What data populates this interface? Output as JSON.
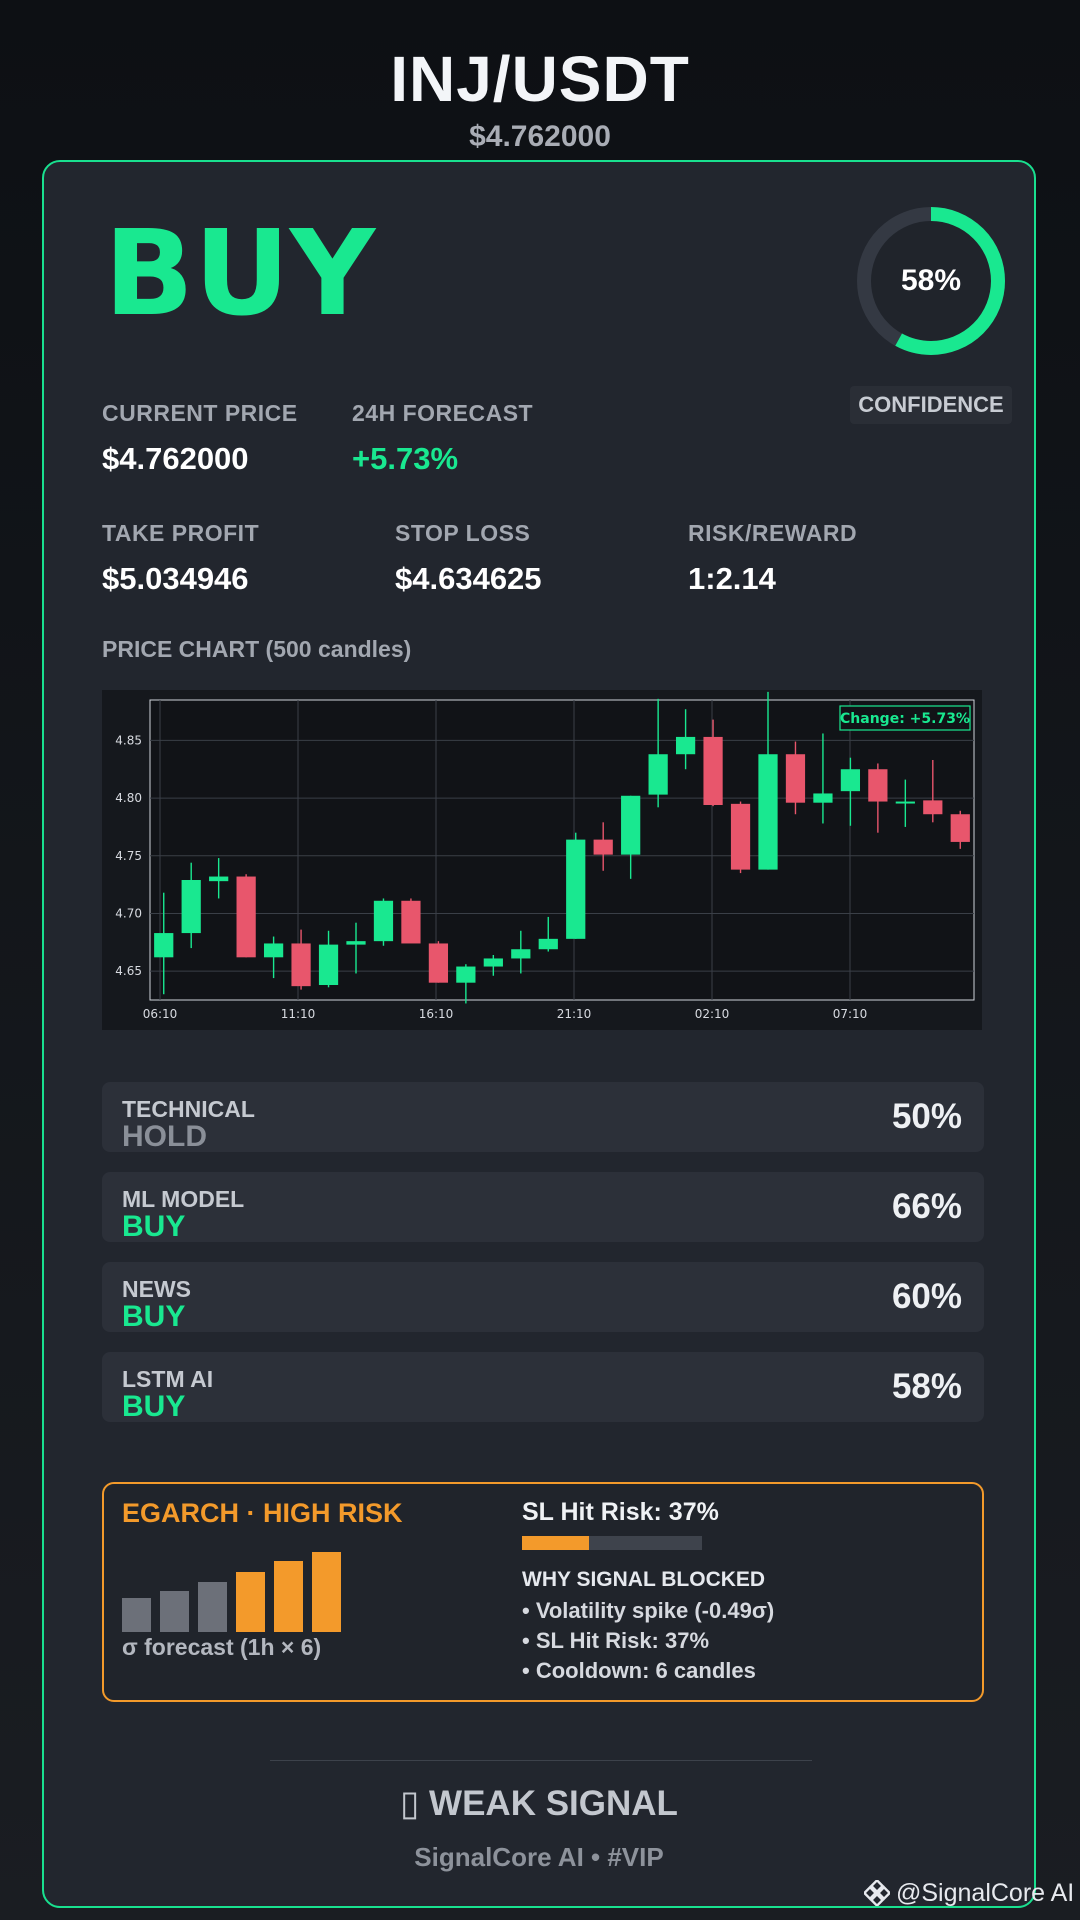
{
  "header": {
    "pair": "INJ/USDT",
    "price": "$4.762000"
  },
  "signal": {
    "action": "BUY",
    "confidence_pct": 58,
    "confidence_text": "58%",
    "confidence_label": "CONFIDENCE"
  },
  "stats": {
    "current_price": {
      "label": "CURRENT PRICE",
      "value": "$4.762000"
    },
    "forecast": {
      "label": "24H FORECAST",
      "value": "+5.73%"
    },
    "take_profit": {
      "label": "TAKE PROFIT",
      "value": "$5.034946"
    },
    "stop_loss": {
      "label": "STOP LOSS",
      "value": "$4.634625"
    },
    "risk_reward": {
      "label": "RISK/REWARD",
      "value": "1:2.14"
    }
  },
  "chart_section_label": "PRICE CHART (500 candles)",
  "chart_data": {
    "type": "candlestick",
    "annotation": "Change: +5.73%",
    "x_ticks": [
      "06:10",
      "11:10",
      "16:10",
      "21:10",
      "02:10",
      "07:10"
    ],
    "y_ticks": [
      "4.65",
      "4.70",
      "4.75",
      "4.80",
      "4.85"
    ],
    "ylim": [
      4.625,
      4.885
    ],
    "grid": true,
    "colors": {
      "up": "#19e890",
      "down": "#e8566c"
    },
    "candles": [
      {
        "o": 4.662,
        "h": 4.718,
        "l": 4.63,
        "c": 4.683
      },
      {
        "o": 4.683,
        "h": 4.744,
        "l": 4.67,
        "c": 4.729
      },
      {
        "o": 4.728,
        "h": 4.748,
        "l": 4.713,
        "c": 4.732
      },
      {
        "o": 4.732,
        "h": 4.734,
        "l": 4.662,
        "c": 4.662
      },
      {
        "o": 4.662,
        "h": 4.68,
        "l": 4.644,
        "c": 4.674
      },
      {
        "o": 4.674,
        "h": 4.686,
        "l": 4.634,
        "c": 4.637
      },
      {
        "o": 4.638,
        "h": 4.685,
        "l": 4.636,
        "c": 4.673
      },
      {
        "o": 4.673,
        "h": 4.692,
        "l": 4.648,
        "c": 4.676
      },
      {
        "o": 4.676,
        "h": 4.713,
        "l": 4.672,
        "c": 4.711
      },
      {
        "o": 4.711,
        "h": 4.713,
        "l": 4.675,
        "c": 4.674
      },
      {
        "o": 4.674,
        "h": 4.676,
        "l": 4.64,
        "c": 4.64
      },
      {
        "o": 4.64,
        "h": 4.656,
        "l": 4.622,
        "c": 4.654
      },
      {
        "o": 4.654,
        "h": 4.664,
        "l": 4.646,
        "c": 4.661
      },
      {
        "o": 4.661,
        "h": 4.685,
        "l": 4.648,
        "c": 4.669
      },
      {
        "o": 4.669,
        "h": 4.697,
        "l": 4.667,
        "c": 4.678
      },
      {
        "o": 4.678,
        "h": 4.77,
        "l": 4.678,
        "c": 4.764
      },
      {
        "o": 4.764,
        "h": 4.779,
        "l": 4.737,
        "c": 4.751
      },
      {
        "o": 4.751,
        "h": 4.802,
        "l": 4.73,
        "c": 4.802
      },
      {
        "o": 4.803,
        "h": 4.886,
        "l": 4.792,
        "c": 4.838
      },
      {
        "o": 4.838,
        "h": 4.877,
        "l": 4.825,
        "c": 4.853
      },
      {
        "o": 4.853,
        "h": 4.868,
        "l": 4.793,
        "c": 4.794
      },
      {
        "o": 4.795,
        "h": 4.797,
        "l": 4.735,
        "c": 4.738
      },
      {
        "o": 4.738,
        "h": 4.892,
        "l": 4.738,
        "c": 4.838
      },
      {
        "o": 4.838,
        "h": 4.849,
        "l": 4.786,
        "c": 4.796
      },
      {
        "o": 4.796,
        "h": 4.856,
        "l": 4.778,
        "c": 4.804
      },
      {
        "o": 4.806,
        "h": 4.835,
        "l": 4.776,
        "c": 4.825
      },
      {
        "o": 4.825,
        "h": 4.83,
        "l": 4.77,
        "c": 4.797
      },
      {
        "o": 4.797,
        "h": 4.816,
        "l": 4.775,
        "c": 4.797
      },
      {
        "o": 4.798,
        "h": 4.833,
        "l": 4.779,
        "c": 4.786
      },
      {
        "o": 4.786,
        "h": 4.789,
        "l": 4.756,
        "c": 4.762
      }
    ]
  },
  "models": [
    {
      "name": "TECHNICAL",
      "signal": "HOLD",
      "pct": "50%"
    },
    {
      "name": "ML MODEL",
      "signal": "BUY",
      "pct": "66%"
    },
    {
      "name": "NEWS",
      "signal": "BUY",
      "pct": "60%"
    },
    {
      "name": "LSTM AI",
      "signal": "BUY",
      "pct": "58%"
    }
  ],
  "risk": {
    "title": "EGARCH · HIGH RISK",
    "sigma_caption": "σ forecast (1h × 6)",
    "sigma_forecast": [
      0.37,
      0.45,
      0.55,
      0.66,
      0.78,
      0.88
    ],
    "sigma_colors": [
      "#6c7079",
      "#6c7079",
      "#6c7079",
      "#f39a2b",
      "#f39a2b",
      "#f39a2b"
    ],
    "sl_hit_title": "SL Hit Risk: 37%",
    "sl_hit_fraction": 0.37,
    "why_title": "WHY SIGNAL BLOCKED",
    "why_items": [
      "• Volatility spike (-0.49σ)",
      "• SL Hit Risk: 37%",
      "• Cooldown: 6 candles"
    ]
  },
  "footer": {
    "verdict": "▯ WEAK SIGNAL",
    "brand": "SignalCore AI • #VIP",
    "watermark": "@SignalCore AI"
  }
}
